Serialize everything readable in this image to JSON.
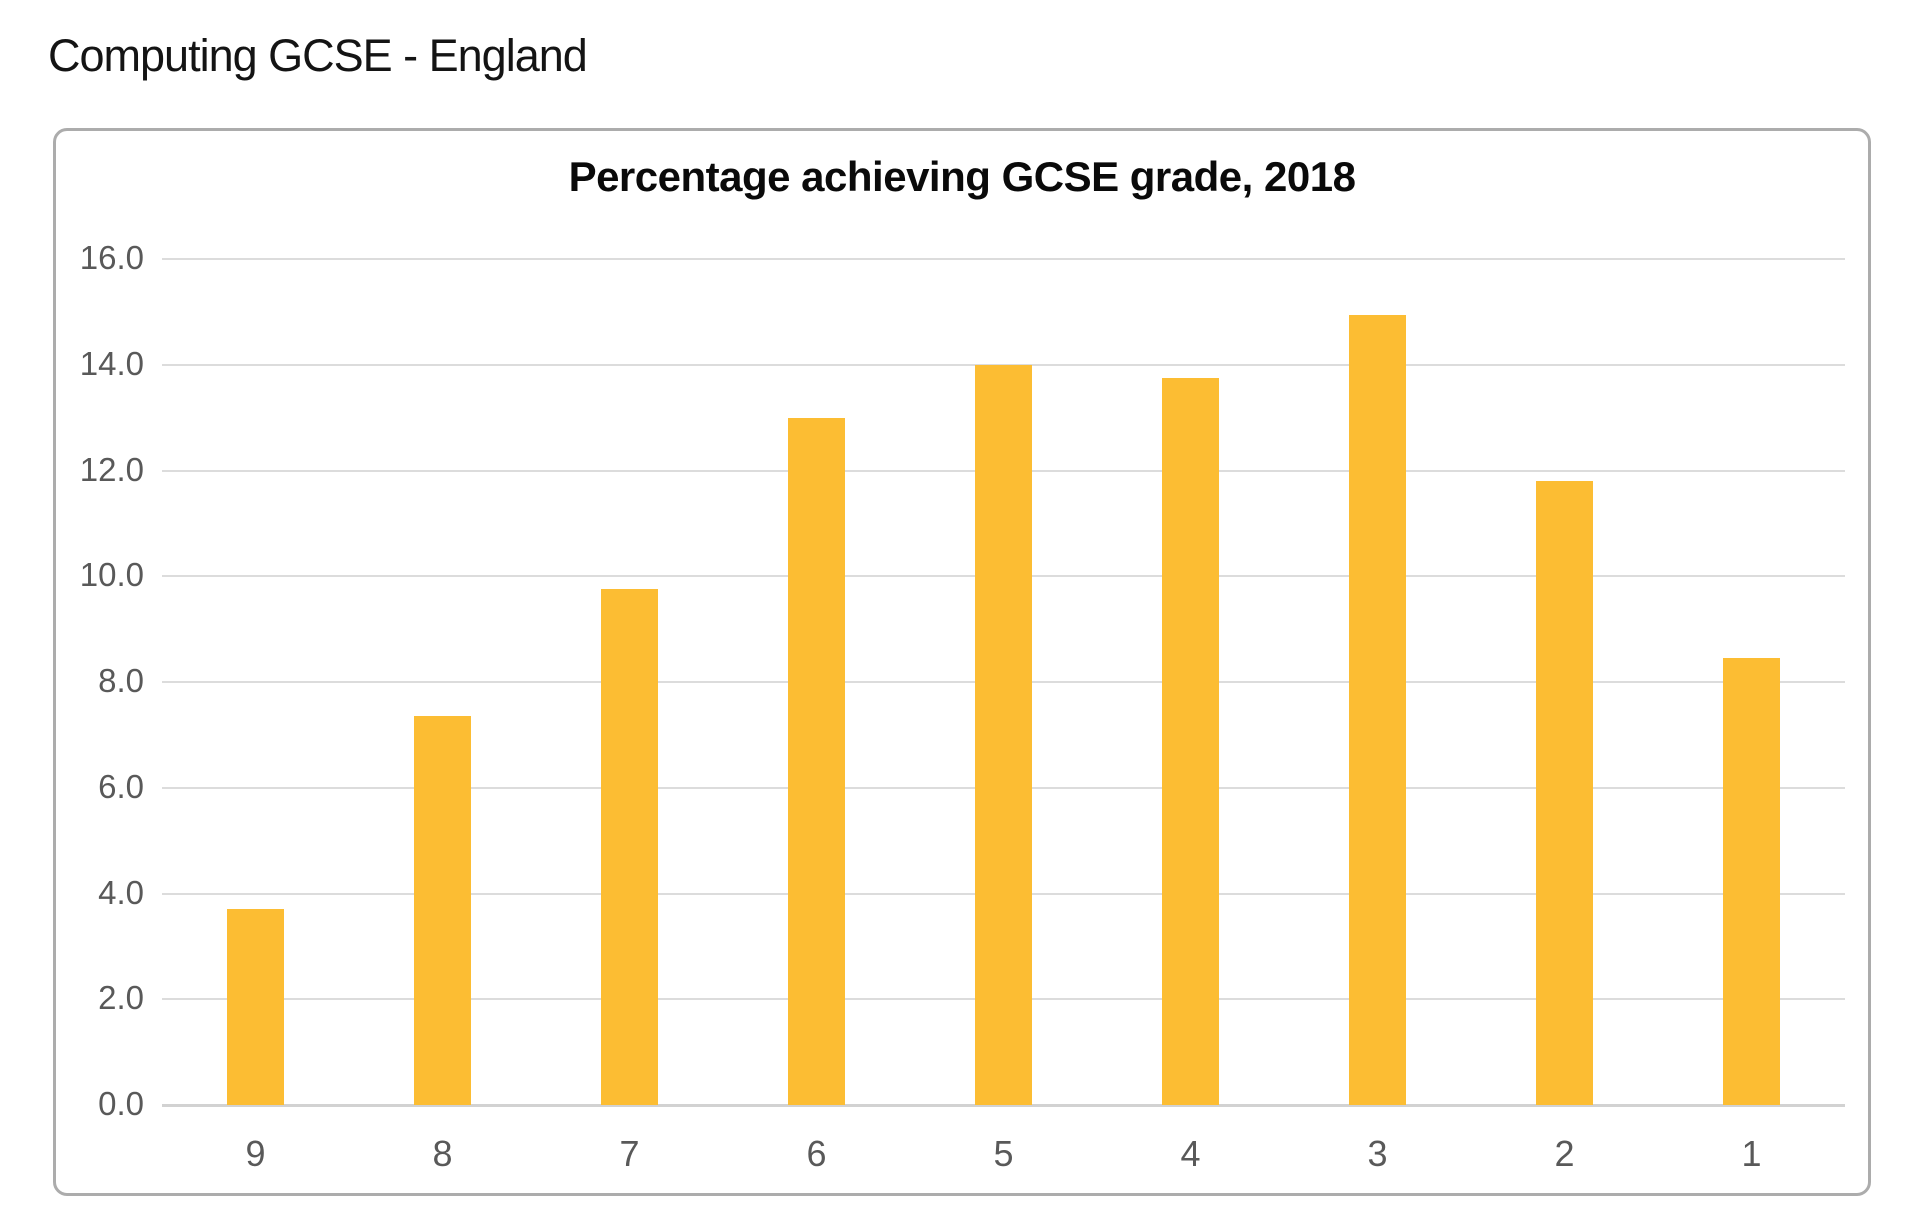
{
  "page": {
    "heading": "Computing GCSE - England"
  },
  "colors": {
    "bar": "#FCBD33",
    "gridline": "#DCDCDC",
    "baseline": "#D2D2D2",
    "tick_label": "#595959",
    "panel_border": "#ACACAC",
    "title_text": "#0A0A0A"
  },
  "chart_data": {
    "type": "bar",
    "title": "Percentage achieving GCSE grade, 2018",
    "categories": [
      "9",
      "8",
      "7",
      "6",
      "5",
      "4",
      "3",
      "2",
      "1"
    ],
    "values": [
      3.7,
      7.35,
      9.75,
      13.0,
      14.0,
      13.75,
      14.95,
      11.8,
      8.45
    ],
    "xlabel": "",
    "ylabel": "",
    "ylim": [
      0,
      16
    ],
    "ytick_step": 2,
    "ytick_labels": [
      "0.0",
      "2.0",
      "4.0",
      "6.0",
      "8.0",
      "10.0",
      "12.0",
      "14.0",
      "16.0"
    ],
    "grid": true,
    "legend": "none",
    "bar_color": "#FCBD33"
  }
}
